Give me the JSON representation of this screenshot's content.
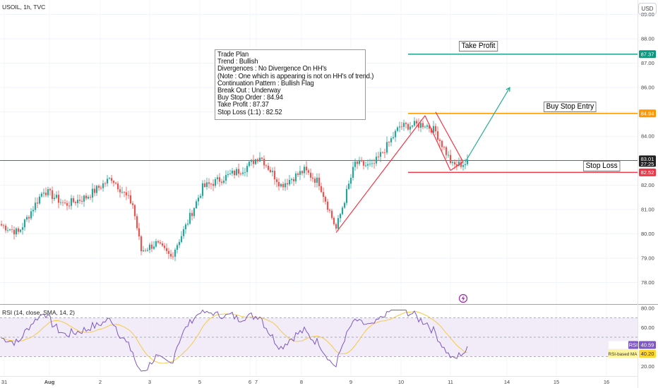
{
  "header": {
    "symbol": "USOIL, 1h, TVC",
    "currency_button": "USD"
  },
  "trade_plan": {
    "lines": [
      "Trade Plan",
      "Trend : Bullish",
      "Divergences : No Divergence On HH's",
      "(Note : One which is appearing is not on HH's of trend.)",
      "Continuation Pattern : Bullish Flag",
      "Break Out : Underway",
      "Buy Stop Order : 84.94",
      "Take Profit : 87.37",
      "Stop Loss (1:1) : 82.52"
    ]
  },
  "labels": {
    "take_profit": "Take Profit",
    "buy_stop_entry": "Buy Stop Entry",
    "stop_loss": "Stop Loss"
  },
  "rsi_panel": {
    "title": "RSI (14, close, SMA, 14, 2)",
    "rsi_tag": "RSI",
    "rsi_value": "40.59",
    "ma_tag": "RSI-based MA",
    "ma_value": "40.20"
  },
  "colors": {
    "up_candle": "#26a69a",
    "down_candle": "#ef5350",
    "take_profit_line": "#089981",
    "entry_line": "#ff9800",
    "stop_line": "#f23645",
    "rsi_line": "#7e57c2",
    "rsi_ma_line": "#f7c948",
    "pattern_red": "#f23645",
    "projection_green": "#22ab94"
  },
  "chart_data": [
    {
      "type": "candlestick",
      "title": "USOIL, 1h, TVC",
      "y_ticks": [
        78.0,
        79.0,
        80.0,
        81.0,
        82.0,
        83.0,
        84.0,
        85.0,
        86.0,
        87.0,
        88.0,
        89.0
      ],
      "y_tick_labels": [
        "78.00",
        "79.00",
        "80.00",
        "81.00",
        "82.00",
        "83.00",
        "84.00",
        "85.00",
        "86.00",
        "87.00",
        "88.00",
        "89.00"
      ],
      "ylim": [
        77.5,
        89.0
      ],
      "x_ticks": [
        "31",
        "Aug",
        "2",
        "3",
        "5",
        "6",
        "7",
        "8",
        "9",
        "10",
        "11",
        "14",
        "15",
        "16"
      ],
      "current_price": "83.01",
      "countdown": "27:25",
      "levels": [
        {
          "name": "Take Profit",
          "value": 87.37,
          "label": "87.37"
        },
        {
          "name": "Buy Stop Entry",
          "value": 84.94,
          "label": "84.94"
        },
        {
          "name": "Stop Loss",
          "value": 82.52,
          "label": "82.52"
        }
      ],
      "anchors": [
        {
          "t": 0,
          "p": 80.35
        },
        {
          "t": 8,
          "p": 80.05
        },
        {
          "t": 20,
          "p": 81.8
        },
        {
          "t": 30,
          "p": 81.2
        },
        {
          "t": 40,
          "p": 81.5
        },
        {
          "t": 52,
          "p": 82.3
        },
        {
          "t": 62,
          "p": 81.2
        },
        {
          "t": 66,
          "p": 79.3
        },
        {
          "t": 73,
          "p": 79.6
        },
        {
          "t": 80,
          "p": 79.05
        },
        {
          "t": 87,
          "p": 80.3
        },
        {
          "t": 95,
          "p": 81.9
        },
        {
          "t": 105,
          "p": 82.3
        },
        {
          "t": 115,
          "p": 82.7
        },
        {
          "t": 122,
          "p": 83.2
        },
        {
          "t": 132,
          "p": 82.0
        },
        {
          "t": 143,
          "p": 82.6
        },
        {
          "t": 150,
          "p": 82.1
        },
        {
          "t": 158,
          "p": 80.2
        },
        {
          "t": 167,
          "p": 82.9
        },
        {
          "t": 175,
          "p": 82.75
        },
        {
          "t": 182,
          "p": 83.6
        },
        {
          "t": 188,
          "p": 84.4
        },
        {
          "t": 200,
          "p": 84.5
        },
        {
          "t": 205,
          "p": 84.2
        },
        {
          "t": 213,
          "p": 82.8
        },
        {
          "t": 220,
          "p": 82.9
        }
      ]
    },
    {
      "type": "line",
      "title": "RSI (14, close, SMA, 14, 2)",
      "y_ticks": [
        20.0,
        40.0,
        60.0,
        80.0
      ],
      "y_tick_labels": [
        "20.00",
        "40.00",
        "60.00",
        "80.00"
      ],
      "ylim": [
        10,
        82
      ],
      "bands": [
        30,
        70
      ],
      "series": [
        {
          "name": "RSI",
          "last": 40.59
        },
        {
          "name": "RSI-based MA",
          "last": 40.2
        }
      ]
    }
  ]
}
